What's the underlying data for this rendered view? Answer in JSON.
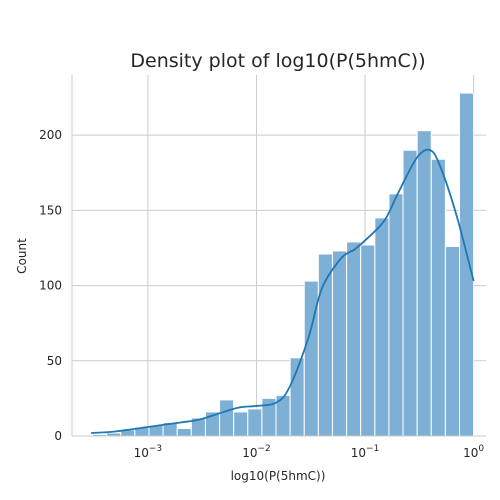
{
  "chart_data": {
    "type": "histogram",
    "title": "Density plot of log10(P(5hmC))",
    "xlabel": "log10(P(5hmC))",
    "ylabel": "Count",
    "x_scale": "log",
    "xlim": [
      0.0002,
      1.3
    ],
    "ylim": [
      0,
      240
    ],
    "grid": true,
    "y_ticks": [
      0,
      50,
      100,
      150,
      200
    ],
    "x_ticks": [
      {
        "value": 0.001,
        "base": "10",
        "exp": "−3"
      },
      {
        "value": 0.01,
        "base": "10",
        "exp": "−2"
      },
      {
        "value": 0.1,
        "base": "10",
        "exp": "−1"
      },
      {
        "value": 1,
        "base": "10",
        "exp": "0"
      }
    ],
    "bar_color": "#7eb0d5",
    "bar_edge_color": "#ffffff",
    "line_color": "#1f77b4",
    "bins": {
      "log10_start": -3.51,
      "log10_end": 0.0,
      "counts": [
        1,
        2,
        4,
        6,
        7,
        9,
        5,
        12,
        16,
        24,
        16,
        18,
        25,
        27,
        52,
        103,
        121,
        123,
        129,
        127,
        145,
        161,
        190,
        203,
        184,
        126,
        228
      ]
    },
    "kde": {
      "x": [
        0.0003,
        0.0005,
        0.001,
        0.002,
        0.003,
        0.005,
        0.007,
        0.01,
        0.015,
        0.02,
        0.03,
        0.04,
        0.06,
        0.08,
        0.1,
        0.15,
        0.2,
        0.3,
        0.4,
        0.5,
        0.7,
        1.0
      ],
      "y": [
        2,
        3,
        6,
        9,
        11,
        16,
        19,
        20,
        22,
        32,
        65,
        98,
        118,
        124,
        130,
        143,
        161,
        185,
        190,
        178,
        146,
        103
      ]
    }
  }
}
